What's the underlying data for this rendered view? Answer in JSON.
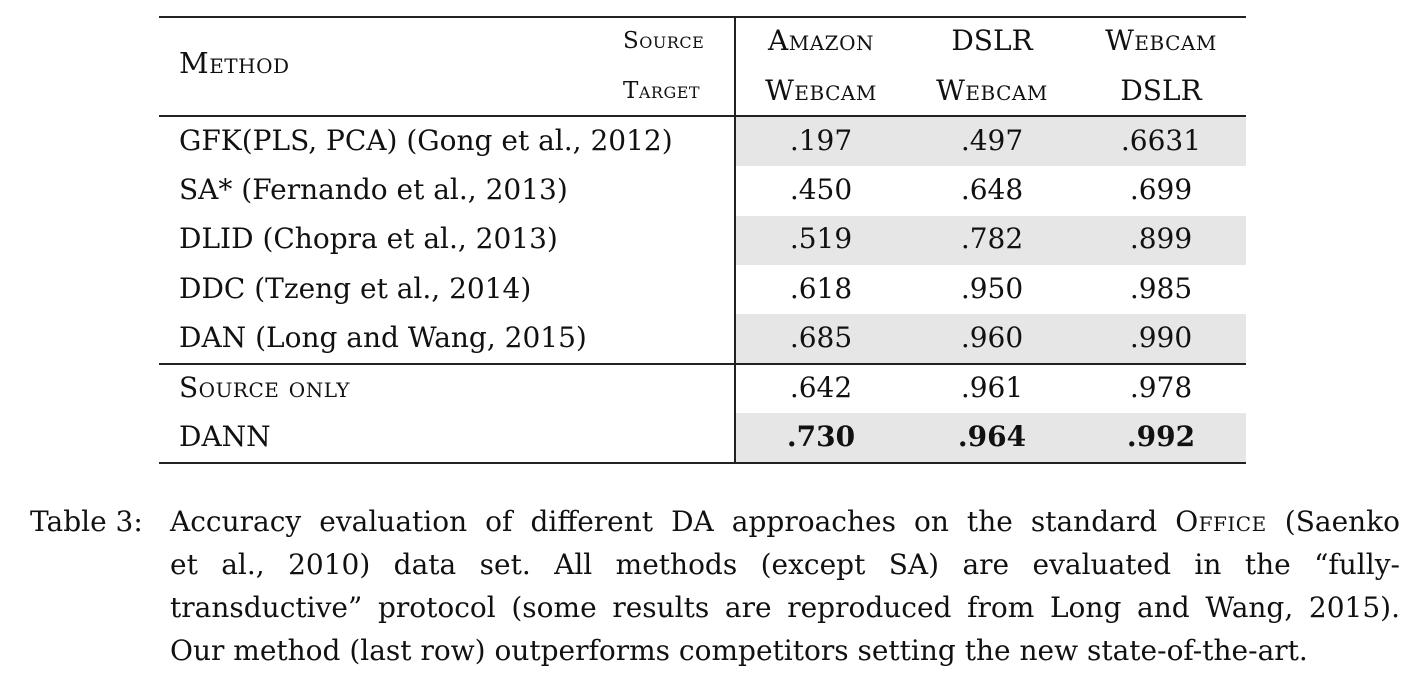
{
  "table": {
    "header": {
      "method": "Method",
      "source": "Source",
      "target": "Target",
      "columns": [
        {
          "source": "Amazon",
          "target": "Webcam"
        },
        {
          "source": "DSLR",
          "target": "Webcam"
        },
        {
          "source": "Webcam",
          "target": "DSLR"
        }
      ]
    },
    "rows": [
      {
        "method": "GFK(PLS, PCA) (Gong et al., 2012)",
        "values": [
          ".197",
          ".497",
          ".6631"
        ],
        "shaded": true,
        "bold": false,
        "smallcaps": false
      },
      {
        "method": "SA* (Fernando et al., 2013)",
        "values": [
          ".450",
          ".648",
          ".699"
        ],
        "shaded": false,
        "bold": false,
        "smallcaps": false
      },
      {
        "method": "DLID (Chopra et al., 2013)",
        "values": [
          ".519",
          ".782",
          ".899"
        ],
        "shaded": true,
        "bold": false,
        "smallcaps": false
      },
      {
        "method": "DDC (Tzeng et al., 2014)",
        "values": [
          ".618",
          ".950",
          ".985"
        ],
        "shaded": false,
        "bold": false,
        "smallcaps": false
      },
      {
        "method": "DAN (Long and Wang, 2015)",
        "values": [
          ".685",
          ".960",
          ".990"
        ],
        "shaded": true,
        "bold": false,
        "smallcaps": false
      },
      {
        "method": "Source only",
        "values": [
          ".642",
          ".961",
          ".978"
        ],
        "shaded": false,
        "bold": false,
        "smallcaps": true
      },
      {
        "method": "DANN",
        "values": [
          ".730",
          ".964",
          ".992"
        ],
        "shaded": true,
        "bold": true,
        "smallcaps": false
      }
    ]
  },
  "caption": {
    "label": "Table 3:",
    "line1_a": "Accuracy evaluation of different DA approaches on the standard",
    "line1_office": "Office",
    "line1_b": "(Saenko",
    "line2": "et al., 2010) data set.  All methods (except SA) are evaluated in the “fully-",
    "line3": "transductive” protocol (some results are reproduced from Long and Wang, 2015).",
    "line4": "Our method (last row) outperforms competitors setting the new state-of-the-art."
  }
}
